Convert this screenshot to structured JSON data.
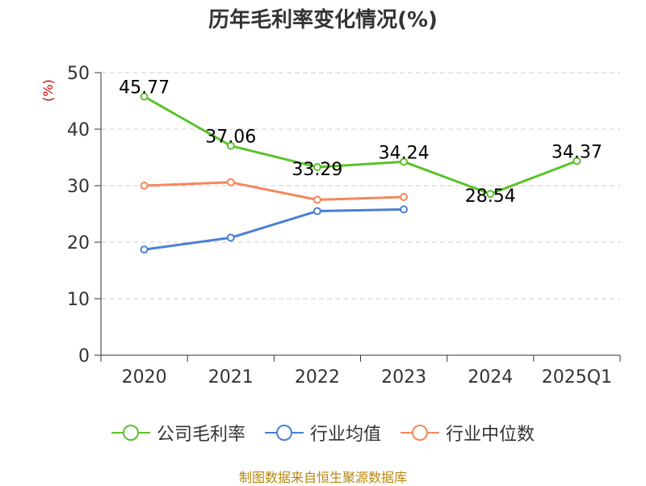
{
  "chart_data": {
    "type": "line",
    "title": "历年毛利率变化情况(%)",
    "ylabel": "(%)",
    "categories": [
      "2020",
      "2021",
      "2022",
      "2023",
      "2024",
      "2025Q1"
    ],
    "yticks": [
      "0",
      "10",
      "20",
      "30",
      "40",
      "50"
    ],
    "ylim": [
      0,
      50
    ],
    "grid": "horizontal-dashed",
    "legend_position": "bottom",
    "series": [
      {
        "name": "公司毛利率",
        "color": "#5cc22a",
        "values": [
          45.77,
          37.06,
          33.29,
          34.24,
          28.54,
          34.37
        ],
        "labels": [
          "45.77",
          "37.06",
          "33.29",
          "34.24",
          "28.54",
          "34.37"
        ]
      },
      {
        "name": "行业均值",
        "color": "#4a7fd8",
        "values": [
          18.7,
          20.8,
          25.5,
          25.8,
          null,
          null
        ]
      },
      {
        "name": "行业中位数",
        "color": "#f5875c",
        "values": [
          30.0,
          30.6,
          27.5,
          28.0,
          null,
          null
        ]
      }
    ]
  },
  "colors": {
    "unit_label": "#cc0000",
    "axis": "#333333",
    "grid": "#cccccc",
    "source": "#b8860b"
  },
  "source": "制图数据来自恒生聚源数据库"
}
